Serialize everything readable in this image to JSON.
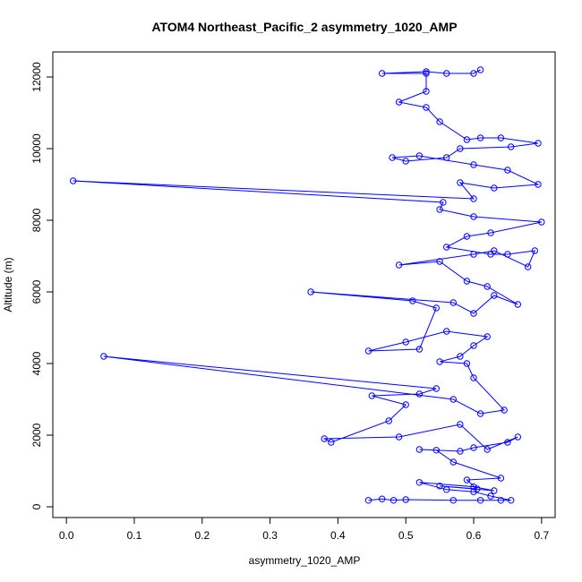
{
  "chart_data": {
    "type": "line",
    "title": "ATOM4 Northeast_Pacific_2 asymmetry_1020_AMP",
    "xlabel": "asymmetry_1020_AMP",
    "ylabel": "Altitude (m)",
    "xlim": [
      -0.02,
      0.72
    ],
    "ylim": [
      -300,
      12700
    ],
    "xticks": [
      0.0,
      0.1,
      0.2,
      0.3,
      0.4,
      0.5,
      0.6,
      0.7
    ],
    "xtick_labels": [
      "0.0",
      "0.1",
      "0.2",
      "0.3",
      "0.4",
      "0.5",
      "0.6",
      "0.7"
    ],
    "yticks": [
      0,
      2000,
      4000,
      6000,
      8000,
      10000,
      12000
    ],
    "ytick_labels": [
      "0",
      "2000",
      "4000",
      "6000",
      "8000",
      "10000",
      "12000"
    ],
    "grid": false,
    "series": [
      {
        "color": "#0000ff",
        "marker": "open-circle",
        "points": [
          [
            0.445,
            180
          ],
          [
            0.465,
            220
          ],
          [
            0.482,
            180
          ],
          [
            0.5,
            200
          ],
          [
            0.57,
            180
          ],
          [
            0.61,
            180
          ],
          [
            0.64,
            180
          ],
          [
            0.655,
            180
          ],
          [
            0.625,
            300
          ],
          [
            0.6,
            420
          ],
          [
            0.56,
            480
          ],
          [
            0.52,
            680
          ],
          [
            0.6,
            560
          ],
          [
            0.63,
            450
          ],
          [
            0.55,
            580
          ],
          [
            0.605,
            500
          ],
          [
            0.59,
            750
          ],
          [
            0.64,
            800
          ],
          [
            0.57,
            1250
          ],
          [
            0.545,
            1580
          ],
          [
            0.52,
            1600
          ],
          [
            0.58,
            1550
          ],
          [
            0.6,
            1650
          ],
          [
            0.65,
            1800
          ],
          [
            0.665,
            1950
          ],
          [
            0.62,
            1600
          ],
          [
            0.58,
            2300
          ],
          [
            0.49,
            1950
          ],
          [
            0.38,
            1900
          ],
          [
            0.39,
            1800
          ],
          [
            0.475,
            2400
          ],
          [
            0.5,
            2850
          ],
          [
            0.45,
            3100
          ],
          [
            0.52,
            3150
          ],
          [
            0.545,
            3300
          ],
          [
            0.055,
            4200
          ],
          [
            0.57,
            3000
          ],
          [
            0.61,
            2600
          ],
          [
            0.645,
            2700
          ],
          [
            0.6,
            3600
          ],
          [
            0.59,
            4000
          ],
          [
            0.55,
            4050
          ],
          [
            0.58,
            4200
          ],
          [
            0.6,
            4500
          ],
          [
            0.62,
            4750
          ],
          [
            0.56,
            4900
          ],
          [
            0.5,
            4600
          ],
          [
            0.445,
            4350
          ],
          [
            0.52,
            4400
          ],
          [
            0.545,
            5550
          ],
          [
            0.51,
            5750
          ],
          [
            0.36,
            6000
          ],
          [
            0.57,
            5700
          ],
          [
            0.6,
            5400
          ],
          [
            0.63,
            5900
          ],
          [
            0.665,
            5650
          ],
          [
            0.62,
            6150
          ],
          [
            0.59,
            6300
          ],
          [
            0.55,
            6850
          ],
          [
            0.49,
            6750
          ],
          [
            0.6,
            7050
          ],
          [
            0.63,
            7150
          ],
          [
            0.68,
            6700
          ],
          [
            0.69,
            7150
          ],
          [
            0.65,
            7050
          ],
          [
            0.625,
            7050
          ],
          [
            0.56,
            7250
          ],
          [
            0.59,
            7550
          ],
          [
            0.625,
            7650
          ],
          [
            0.7,
            7950
          ],
          [
            0.6,
            8100
          ],
          [
            0.55,
            8300
          ],
          [
            0.555,
            8500
          ],
          [
            0.01,
            9100
          ],
          [
            0.6,
            8600
          ],
          [
            0.58,
            9050
          ],
          [
            0.63,
            8900
          ],
          [
            0.695,
            9000
          ],
          [
            0.65,
            9400
          ],
          [
            0.6,
            9550
          ],
          [
            0.52,
            9800
          ],
          [
            0.48,
            9750
          ],
          [
            0.5,
            9650
          ],
          [
            0.56,
            9750
          ],
          [
            0.58,
            10000
          ],
          [
            0.655,
            10050
          ],
          [
            0.695,
            10150
          ],
          [
            0.64,
            10300
          ],
          [
            0.61,
            10300
          ],
          [
            0.59,
            10250
          ],
          [
            0.55,
            10750
          ],
          [
            0.53,
            11150
          ],
          [
            0.49,
            11300
          ],
          [
            0.53,
            11600
          ],
          [
            0.53,
            12100
          ],
          [
            0.465,
            12100
          ],
          [
            0.53,
            12150
          ],
          [
            0.56,
            12100
          ],
          [
            0.6,
            12100
          ],
          [
            0.61,
            12200
          ]
        ]
      }
    ]
  }
}
